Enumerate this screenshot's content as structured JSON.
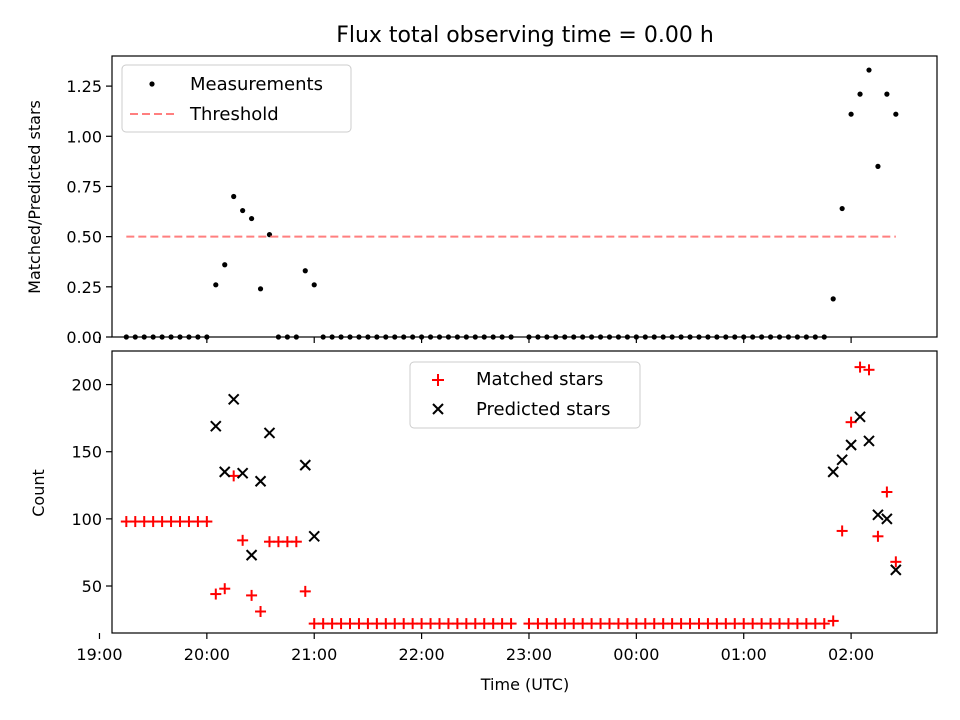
{
  "chart_data": [
    {
      "type": "scatter",
      "title": "Flux total observing time = 0.00 h",
      "xlabel": "",
      "ylabel": "Matched/Predicted stars",
      "ylim": [
        0,
        1.4
      ],
      "yticks": [
        0.0,
        0.25,
        0.5,
        0.75,
        1.0,
        1.25
      ],
      "ytick_labels": [
        "0.00",
        "0.25",
        "0.50",
        "0.75",
        "1.00",
        "1.25"
      ],
      "xlim": [
        "19:07",
        "02:48"
      ],
      "xticks": [
        "19:00",
        "20:00",
        "21:00",
        "22:00",
        "23:00",
        "00:00",
        "01:00",
        "02:00"
      ],
      "show_x_tick_labels": false,
      "grid": false,
      "legend": "top-left",
      "series": [
        {
          "name": "Measurements",
          "marker": "dot",
          "color": "#000000",
          "points": [
            [
              "19:15",
              0
            ],
            [
              "19:20",
              0
            ],
            [
              "19:25",
              0
            ],
            [
              "19:30",
              0
            ],
            [
              "19:35",
              0
            ],
            [
              "19:40",
              0
            ],
            [
              "19:45",
              0
            ],
            [
              "19:50",
              0
            ],
            [
              "19:55",
              0
            ],
            [
              "20:00",
              0
            ],
            [
              "20:05",
              0.26
            ],
            [
              "20:10",
              0.36
            ],
            [
              "20:15",
              0.7
            ],
            [
              "20:20",
              0.63
            ],
            [
              "20:25",
              0.59
            ],
            [
              "20:30",
              0.24
            ],
            [
              "20:35",
              0.51
            ],
            [
              "20:40",
              0
            ],
            [
              "20:45",
              0
            ],
            [
              "20:50",
              0
            ],
            [
              "20:55",
              0.33
            ],
            [
              "21:00",
              0.26
            ],
            [
              "21:05",
              0
            ],
            [
              "21:10",
              0
            ],
            [
              "21:15",
              0
            ],
            [
              "21:20",
              0
            ],
            [
              "21:25",
              0
            ],
            [
              "21:30",
              0
            ],
            [
              "21:35",
              0
            ],
            [
              "21:40",
              0
            ],
            [
              "21:45",
              0
            ],
            [
              "21:50",
              0
            ],
            [
              "21:55",
              0
            ],
            [
              "22:00",
              0
            ],
            [
              "22:05",
              0
            ],
            [
              "22:10",
              0
            ],
            [
              "22:15",
              0
            ],
            [
              "22:20",
              0
            ],
            [
              "22:25",
              0
            ],
            [
              "22:30",
              0
            ],
            [
              "22:35",
              0
            ],
            [
              "22:40",
              0
            ],
            [
              "22:45",
              0
            ],
            [
              "22:50",
              0
            ],
            [
              "23:00",
              0
            ],
            [
              "23:05",
              0
            ],
            [
              "23:10",
              0
            ],
            [
              "23:15",
              0
            ],
            [
              "23:20",
              0
            ],
            [
              "23:25",
              0
            ],
            [
              "23:30",
              0
            ],
            [
              "23:35",
              0
            ],
            [
              "23:40",
              0
            ],
            [
              "23:45",
              0
            ],
            [
              "23:50",
              0
            ],
            [
              "23:55",
              0
            ],
            [
              "00:00",
              0
            ],
            [
              "00:05",
              0
            ],
            [
              "00:10",
              0
            ],
            [
              "00:15",
              0
            ],
            [
              "00:20",
              0
            ],
            [
              "00:25",
              0
            ],
            [
              "00:30",
              0
            ],
            [
              "00:35",
              0
            ],
            [
              "00:40",
              0
            ],
            [
              "00:45",
              0
            ],
            [
              "00:50",
              0
            ],
            [
              "00:55",
              0
            ],
            [
              "01:00",
              0
            ],
            [
              "01:05",
              0
            ],
            [
              "01:10",
              0
            ],
            [
              "01:15",
              0
            ],
            [
              "01:20",
              0
            ],
            [
              "01:25",
              0
            ],
            [
              "01:30",
              0
            ],
            [
              "01:35",
              0
            ],
            [
              "01:40",
              0
            ],
            [
              "01:45",
              0
            ],
            [
              "01:50",
              0.19
            ],
            [
              "01:55",
              0.64
            ],
            [
              "02:00",
              1.11
            ],
            [
              "02:05",
              1.21
            ],
            [
              "02:10",
              1.33
            ],
            [
              "02:15",
              0.85
            ],
            [
              "02:20",
              1.21
            ],
            [
              "02:25",
              1.11
            ]
          ]
        },
        {
          "name": "Threshold",
          "marker": "dashed-line",
          "color": "#ff7f7f",
          "points": [
            [
              "19:15",
              0.5
            ],
            [
              "02:25",
              0.5
            ]
          ]
        }
      ]
    },
    {
      "type": "scatter",
      "title": "",
      "xlabel": "Time (UTC)",
      "ylabel": "Count",
      "ylim": [
        15,
        225
      ],
      "yticks": [
        50,
        100,
        150,
        200
      ],
      "ytick_labels": [
        "50",
        "100",
        "150",
        "200"
      ],
      "xlim": [
        "19:07",
        "02:48"
      ],
      "xticks": [
        "19:00",
        "20:00",
        "21:00",
        "22:00",
        "23:00",
        "00:00",
        "01:00",
        "02:00"
      ],
      "xtick_labels": [
        "19:00",
        "20:00",
        "21:00",
        "22:00",
        "23:00",
        "00:00",
        "01:00",
        "02:00"
      ],
      "grid": false,
      "legend": "top-center",
      "series": [
        {
          "name": "Matched stars",
          "marker": "plus",
          "color": "#ff0000",
          "points": [
            [
              "19:15",
              98
            ],
            [
              "19:20",
              98
            ],
            [
              "19:25",
              98
            ],
            [
              "19:30",
              98
            ],
            [
              "19:35",
              98
            ],
            [
              "19:40",
              98
            ],
            [
              "19:45",
              98
            ],
            [
              "19:50",
              98
            ],
            [
              "19:55",
              98
            ],
            [
              "20:00",
              98
            ],
            [
              "20:05",
              44
            ],
            [
              "20:10",
              48
            ],
            [
              "20:15",
              132
            ],
            [
              "20:20",
              84
            ],
            [
              "20:25",
              43
            ],
            [
              "20:30",
              31
            ],
            [
              "20:35",
              83
            ],
            [
              "20:40",
              83
            ],
            [
              "20:45",
              83
            ],
            [
              "20:50",
              83
            ],
            [
              "20:55",
              46
            ],
            [
              "21:00",
              22
            ],
            [
              "21:05",
              22
            ],
            [
              "21:10",
              22
            ],
            [
              "21:15",
              22
            ],
            [
              "21:20",
              22
            ],
            [
              "21:25",
              22
            ],
            [
              "21:30",
              22
            ],
            [
              "21:35",
              22
            ],
            [
              "21:40",
              22
            ],
            [
              "21:45",
              22
            ],
            [
              "21:50",
              22
            ],
            [
              "21:55",
              22
            ],
            [
              "22:00",
              22
            ],
            [
              "22:05",
              22
            ],
            [
              "22:10",
              22
            ],
            [
              "22:15",
              22
            ],
            [
              "22:20",
              22
            ],
            [
              "22:25",
              22
            ],
            [
              "22:30",
              22
            ],
            [
              "22:35",
              22
            ],
            [
              "22:40",
              22
            ],
            [
              "22:45",
              22
            ],
            [
              "22:50",
              22
            ],
            [
              "23:00",
              22
            ],
            [
              "23:05",
              22
            ],
            [
              "23:10",
              22
            ],
            [
              "23:15",
              22
            ],
            [
              "23:20",
              22
            ],
            [
              "23:25",
              22
            ],
            [
              "23:30",
              22
            ],
            [
              "23:35",
              22
            ],
            [
              "23:40",
              22
            ],
            [
              "23:45",
              22
            ],
            [
              "23:50",
              22
            ],
            [
              "23:55",
              22
            ],
            [
              "00:00",
              22
            ],
            [
              "00:05",
              22
            ],
            [
              "00:10",
              22
            ],
            [
              "00:15",
              22
            ],
            [
              "00:20",
              22
            ],
            [
              "00:25",
              22
            ],
            [
              "00:30",
              22
            ],
            [
              "00:35",
              22
            ],
            [
              "00:40",
              22
            ],
            [
              "00:45",
              22
            ],
            [
              "00:50",
              22
            ],
            [
              "00:55",
              22
            ],
            [
              "01:00",
              22
            ],
            [
              "01:05",
              22
            ],
            [
              "01:10",
              22
            ],
            [
              "01:15",
              22
            ],
            [
              "01:20",
              22
            ],
            [
              "01:25",
              22
            ],
            [
              "01:30",
              22
            ],
            [
              "01:35",
              22
            ],
            [
              "01:40",
              22
            ],
            [
              "01:45",
              22
            ],
            [
              "01:50",
              24
            ],
            [
              "01:55",
              91
            ],
            [
              "02:00",
              172
            ],
            [
              "02:05",
              213
            ],
            [
              "02:10",
              211
            ],
            [
              "02:15",
              87
            ],
            [
              "02:20",
              120
            ],
            [
              "02:25",
              68
            ]
          ]
        },
        {
          "name": "Predicted stars",
          "marker": "x",
          "color": "#000000",
          "points": [
            [
              "20:05",
              169
            ],
            [
              "20:10",
              135
            ],
            [
              "20:15",
              189
            ],
            [
              "20:20",
              134
            ],
            [
              "20:25",
              73
            ],
            [
              "20:30",
              128
            ],
            [
              "20:35",
              164
            ],
            [
              "20:55",
              140
            ],
            [
              "21:00",
              87
            ],
            [
              "01:50",
              135
            ],
            [
              "01:55",
              144
            ],
            [
              "02:00",
              155
            ],
            [
              "02:05",
              176
            ],
            [
              "02:10",
              158
            ],
            [
              "02:15",
              103
            ],
            [
              "02:20",
              100
            ],
            [
              "02:25",
              62
            ]
          ]
        }
      ]
    }
  ]
}
